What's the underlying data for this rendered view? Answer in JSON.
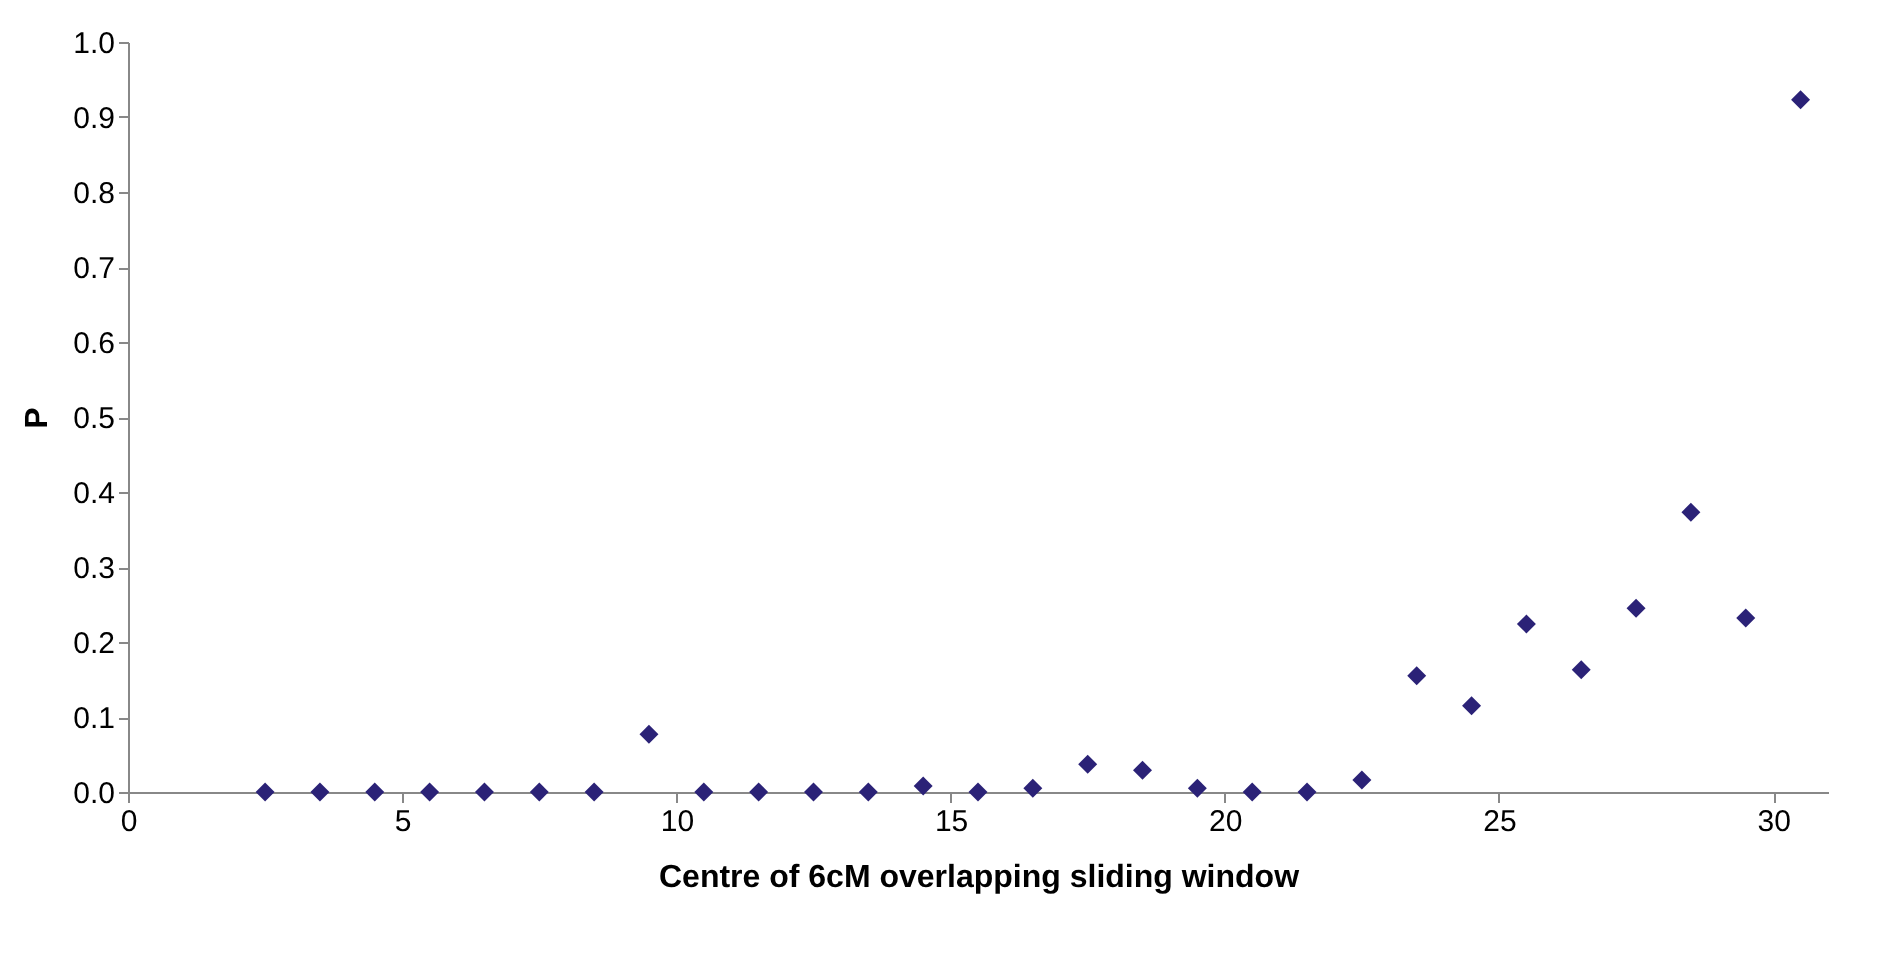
{
  "chart_data": {
    "type": "scatter",
    "xlabel": "Centre of 6cM overlapping sliding window",
    "ylabel": "P",
    "x": [
      2.5,
      3.5,
      4.5,
      5.5,
      6.5,
      7.5,
      8.5,
      9.5,
      10.5,
      11.5,
      12.5,
      13.5,
      14.5,
      15.5,
      16.5,
      17.5,
      18.5,
      19.5,
      20.5,
      21.5,
      22.5,
      23.5,
      24.5,
      25.5,
      26.5,
      27.5,
      28.5,
      29.5,
      30.5
    ],
    "series": [
      {
        "color": "#2b2277",
        "values": [
          0,
          0,
          0,
          0,
          0,
          0,
          0,
          0.077,
          0,
          0,
          0,
          0,
          0.008,
          0,
          0.005,
          0.037,
          0.029,
          0.005,
          0,
          0,
          0.016,
          0.155,
          0.115,
          0.224,
          0.163,
          0.245,
          0.373,
          0.232,
          0.923
        ]
      }
    ],
    "xlim": [
      0,
      31
    ],
    "xticks": [
      0,
      5,
      10,
      15,
      20,
      25,
      30
    ],
    "ylim": [
      0,
      1
    ],
    "yticks": [
      {
        "value": 0,
        "label": "0.0"
      },
      {
        "value": 0.1,
        "label": "0.1"
      },
      {
        "value": 0.2,
        "label": "0.2"
      },
      {
        "value": 0.3,
        "label": "0.3"
      },
      {
        "value": 0.4,
        "label": "0.4"
      },
      {
        "value": 0.5,
        "label": "0.5"
      },
      {
        "value": 0.6,
        "label": "0.6"
      },
      {
        "value": 0.7,
        "label": "0.7"
      },
      {
        "value": 0.8,
        "label": "0.8"
      },
      {
        "value": 0.9,
        "label": "0.9"
      },
      {
        "value": 1,
        "label": "1.0"
      }
    ],
    "grid": false,
    "marker": "diamond"
  }
}
